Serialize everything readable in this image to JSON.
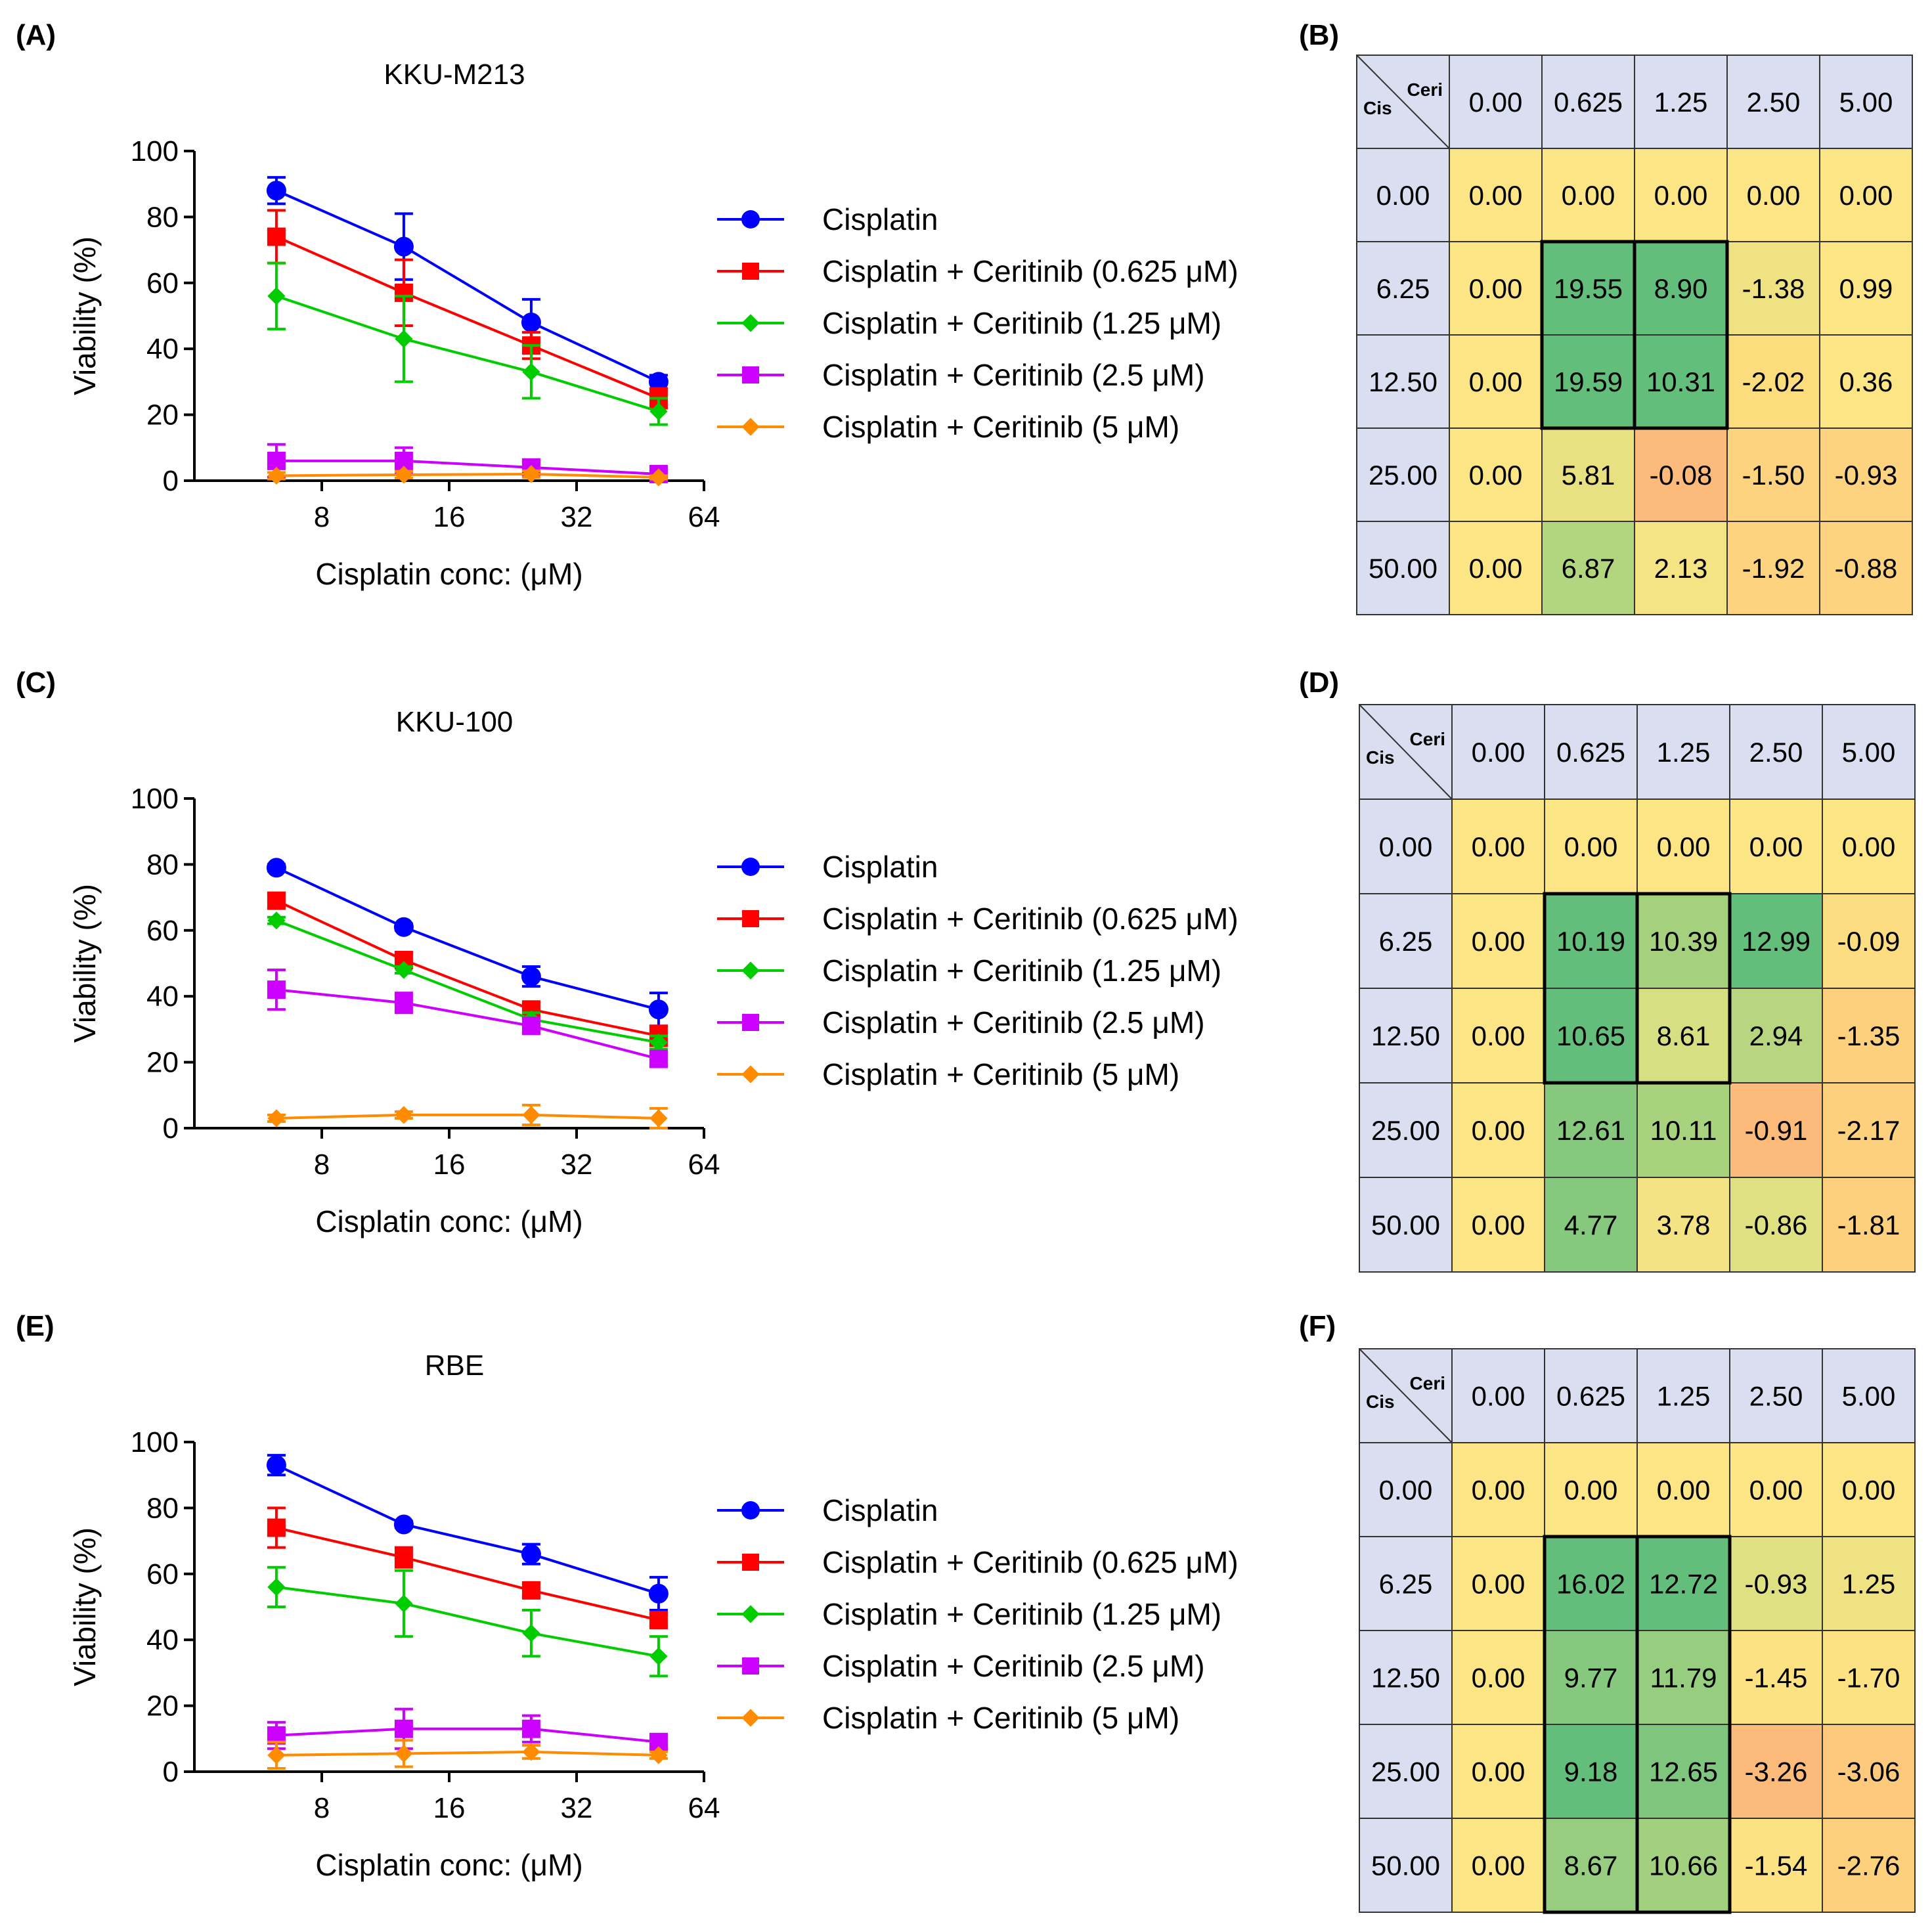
{
  "colors": {
    "cisplatin": "#0000ff",
    "cer0625": "#ff0000",
    "cer125": "#00cc00",
    "cer25": "#cc00ff",
    "cer5": "#ff8c00"
  },
  "chart_data": [
    {
      "type": "line",
      "panel": "(A)",
      "title": "KKU-M213",
      "xlabel": "Cisplatin conc: (μM)",
      "ylabel": "Viability (%)",
      "x_scale": "log2",
      "x": [
        6.25,
        12.5,
        25,
        50
      ],
      "xticks": [
        8,
        16,
        32,
        64
      ],
      "xtick_labels": [
        "8",
        "16",
        "32",
        "64"
      ],
      "ylim": [
        0,
        100
      ],
      "yticks": [
        0,
        20,
        40,
        60,
        80,
        100
      ],
      "ytick_labels": [
        "0",
        "20",
        "40",
        "60",
        "80",
        "100"
      ],
      "series": [
        {
          "name": "Cisplatin",
          "color": "#0000ff",
          "marker": "circle",
          "values": [
            88,
            71,
            48,
            30
          ],
          "errors": [
            4,
            10,
            7,
            2
          ]
        },
        {
          "name": "Cisplatin + Ceritinib (0.625 μM)",
          "color": "#ff0000",
          "marker": "square",
          "values": [
            74,
            57,
            41,
            25
          ],
          "errors": [
            8,
            10,
            4,
            3
          ]
        },
        {
          "name": "Cisplatin + Ceritinib (1.25 μM)",
          "color": "#00cc00",
          "marker": "diamond",
          "values": [
            56,
            43,
            33,
            21
          ],
          "errors": [
            10,
            13,
            8,
            4
          ]
        },
        {
          "name": "Cisplatin + Ceritinib (2.5 μM)",
          "color": "#cc00ff",
          "marker": "square",
          "values": [
            6,
            6,
            4,
            2
          ],
          "errors": [
            5,
            4,
            2,
            1
          ]
        },
        {
          "name": "Cisplatin + Ceritinib (5 μM)",
          "color": "#ff8c00",
          "marker": "diamond",
          "values": [
            1.5,
            1.8,
            2,
            1
          ],
          "errors": [
            1,
            1,
            1,
            0.5
          ]
        }
      ]
    },
    {
      "type": "line",
      "panel": "(C)",
      "title": "KKU-100",
      "xlabel": "Cisplatin conc: (μM)",
      "ylabel": "Viability (%)",
      "x_scale": "log2",
      "x": [
        6.25,
        12.5,
        25,
        50
      ],
      "xticks": [
        8,
        16,
        32,
        64
      ],
      "xtick_labels": [
        "8",
        "16",
        "32",
        "64"
      ],
      "ylim": [
        0,
        100
      ],
      "yticks": [
        0,
        20,
        40,
        60,
        80,
        100
      ],
      "ytick_labels": [
        "0",
        "20",
        "40",
        "60",
        "80",
        "100"
      ],
      "series": [
        {
          "name": "Cisplatin",
          "color": "#0000ff",
          "marker": "circle",
          "values": [
            79,
            61,
            46,
            36
          ],
          "errors": [
            1,
            1,
            3,
            5
          ]
        },
        {
          "name": "Cisplatin + Ceritinib (0.625 μM)",
          "color": "#ff0000",
          "marker": "square",
          "values": [
            69,
            51,
            36,
            28
          ],
          "errors": [
            2,
            2,
            2,
            3
          ]
        },
        {
          "name": "Cisplatin + Ceritinib (1.25 μM)",
          "color": "#00cc00",
          "marker": "diamond",
          "values": [
            63,
            48,
            33,
            26
          ],
          "errors": [
            1,
            1,
            2,
            2
          ]
        },
        {
          "name": "Cisplatin + Ceritinib (2.5 μM)",
          "color": "#cc00ff",
          "marker": "square",
          "values": [
            42,
            38,
            31,
            21
          ],
          "errors": [
            6,
            3,
            2,
            2
          ]
        },
        {
          "name": "Cisplatin + Ceritinib (5 μM)",
          "color": "#ff8c00",
          "marker": "diamond",
          "values": [
            3,
            4,
            4,
            3
          ],
          "errors": [
            1,
            1,
            3,
            3
          ]
        }
      ]
    },
    {
      "type": "line",
      "panel": "(E)",
      "title": "RBE",
      "xlabel": "Cisplatin conc: (μM)",
      "ylabel": "Viability (%)",
      "x_scale": "log2",
      "x": [
        6.25,
        12.5,
        25,
        50
      ],
      "xticks": [
        8,
        16,
        32,
        64
      ],
      "xtick_labels": [
        "8",
        "16",
        "32",
        "64"
      ],
      "ylim": [
        0,
        100
      ],
      "yticks": [
        0,
        20,
        40,
        60,
        80,
        100
      ],
      "ytick_labels": [
        "0",
        "20",
        "40",
        "60",
        "80",
        "100"
      ],
      "series": [
        {
          "name": "Cisplatin",
          "color": "#0000ff",
          "marker": "circle",
          "values": [
            93,
            75,
            66,
            54
          ],
          "errors": [
            3,
            1,
            3,
            5
          ]
        },
        {
          "name": "Cisplatin + Ceritinib (0.625 μM)",
          "color": "#ff0000",
          "marker": "square",
          "values": [
            74,
            65,
            55,
            46
          ],
          "errors": [
            6,
            3,
            2,
            2
          ]
        },
        {
          "name": "Cisplatin + Ceritinib (1.25 μM)",
          "color": "#00cc00",
          "marker": "diamond",
          "values": [
            56,
            51,
            42,
            35
          ],
          "errors": [
            6,
            10,
            7,
            6
          ]
        },
        {
          "name": "Cisplatin + Ceritinib (2.5 μM)",
          "color": "#cc00ff",
          "marker": "square",
          "values": [
            11,
            13,
            13,
            9
          ],
          "errors": [
            4,
            6,
            4,
            2
          ]
        },
        {
          "name": "Cisplatin + Ceritinib (5 μM)",
          "color": "#ff8c00",
          "marker": "diamond",
          "values": [
            5,
            5.5,
            6,
            5
          ],
          "errors": [
            4,
            4,
            2,
            1
          ]
        }
      ]
    },
    {
      "type": "heatmap",
      "panel": "(B)",
      "corner_row_label": "Cis",
      "corner_col_label": "Ceri",
      "col_headers": [
        "0.00",
        "0.625",
        "1.25",
        "2.50",
        "5.00"
      ],
      "row_headers": [
        "0.00",
        "6.25",
        "12.50",
        "25.00",
        "50.00"
      ],
      "cells": [
        [
          "0.00",
          "0.00",
          "0.00",
          "0.00",
          "0.00"
        ],
        [
          "0.00",
          "19.55",
          "8.90",
          "-1.38",
          "0.99"
        ],
        [
          "0.00",
          "19.59",
          "10.31",
          "-2.02",
          "0.36"
        ],
        [
          "0.00",
          "5.81",
          "-0.08",
          "-1.50",
          "-0.93"
        ],
        [
          "0.00",
          "6.87",
          "2.13",
          "-1.92",
          "-0.88"
        ]
      ],
      "colors": [
        [
          "#fbe584",
          "#fbe584",
          "#fbe584",
          "#fbe584",
          "#fbe584"
        ],
        [
          "#fbe584",
          "#63be7b",
          "#63be7b",
          "#eee283",
          "#fbe584"
        ],
        [
          "#fbe584",
          "#63be7b",
          "#63be7b",
          "#fbdd7e",
          "#fbe584"
        ],
        [
          "#fbe584",
          "#e8e182",
          "#fcbb7a",
          "#fdd37f",
          "#fdd37f"
        ],
        [
          "#fbe584",
          "#b2d580",
          "#f5e484",
          "#fdd37f",
          "#fdd37f"
        ]
      ],
      "highlight_box": {
        "rows": [
          1,
          2
        ],
        "cols": [
          1,
          2
        ]
      }
    },
    {
      "type": "heatmap",
      "panel": "(D)",
      "corner_row_label": "Cis",
      "corner_col_label": "Ceri",
      "col_headers": [
        "0.00",
        "0.625",
        "1.25",
        "2.50",
        "5.00"
      ],
      "row_headers": [
        "0.00",
        "6.25",
        "12.50",
        "25.00",
        "50.00"
      ],
      "cells": [
        [
          "0.00",
          "0.00",
          "0.00",
          "0.00",
          "0.00"
        ],
        [
          "0.00",
          "10.19",
          "10.39",
          "12.99",
          "-0.09"
        ],
        [
          "0.00",
          "10.65",
          "8.61",
          "2.94",
          "-1.35"
        ],
        [
          "0.00",
          "12.61",
          "10.11",
          "-0.91",
          "-2.17"
        ],
        [
          "0.00",
          "4.77",
          "3.78",
          "-0.86",
          "-1.81"
        ]
      ],
      "colors": [
        [
          "#fbe584",
          "#fbe584",
          "#fbe584",
          "#fbe584",
          "#fbe584"
        ],
        [
          "#fbe584",
          "#63be7b",
          "#a5d17f",
          "#63be7b",
          "#fcdd81"
        ],
        [
          "#fbe584",
          "#63be7b",
          "#d7df82",
          "#b8d67f",
          "#fdd07e"
        ],
        [
          "#fbe584",
          "#86c87d",
          "#a9d27f",
          "#fcbb7a",
          "#fdd07e"
        ],
        [
          "#fbe584",
          "#86c87d",
          "#f3e384",
          "#dfe082",
          "#fdd07e"
        ]
      ],
      "highlight_box": {
        "rows": [
          1,
          2
        ],
        "cols": [
          1,
          2
        ]
      }
    },
    {
      "type": "heatmap",
      "panel": "(F)",
      "corner_row_label": "Cis",
      "corner_col_label": "Ceri",
      "col_headers": [
        "0.00",
        "0.625",
        "1.25",
        "2.50",
        "5.00"
      ],
      "row_headers": [
        "0.00",
        "6.25",
        "12.50",
        "25.00",
        "50.00"
      ],
      "cells": [
        [
          "0.00",
          "0.00",
          "0.00",
          "0.00",
          "0.00"
        ],
        [
          "0.00",
          "16.02",
          "12.72",
          "-0.93",
          "1.25"
        ],
        [
          "0.00",
          "9.77",
          "11.79",
          "-1.45",
          "-1.70"
        ],
        [
          "0.00",
          "9.18",
          "12.65",
          "-3.26",
          "-3.06"
        ],
        [
          "0.00",
          "8.67",
          "10.66",
          "-1.54",
          "-2.76"
        ]
      ],
      "colors": [
        [
          "#fbe584",
          "#fbe584",
          "#fbe584",
          "#fbe584",
          "#fbe584"
        ],
        [
          "#fbe584",
          "#63be7b",
          "#63be7b",
          "#dfe082",
          "#eee283"
        ],
        [
          "#fbe584",
          "#86c87d",
          "#97cd7e",
          "#fde283",
          "#fde283"
        ],
        [
          "#fbe584",
          "#63be7b",
          "#7ec67d",
          "#fcbb7a",
          "#fdc97c"
        ],
        [
          "#fbe584",
          "#97cd7e",
          "#a3d07e",
          "#fde283",
          "#fdd07e"
        ]
      ],
      "highlight_box": {
        "rows": [
          1,
          4
        ],
        "cols": [
          1,
          2
        ]
      }
    }
  ]
}
